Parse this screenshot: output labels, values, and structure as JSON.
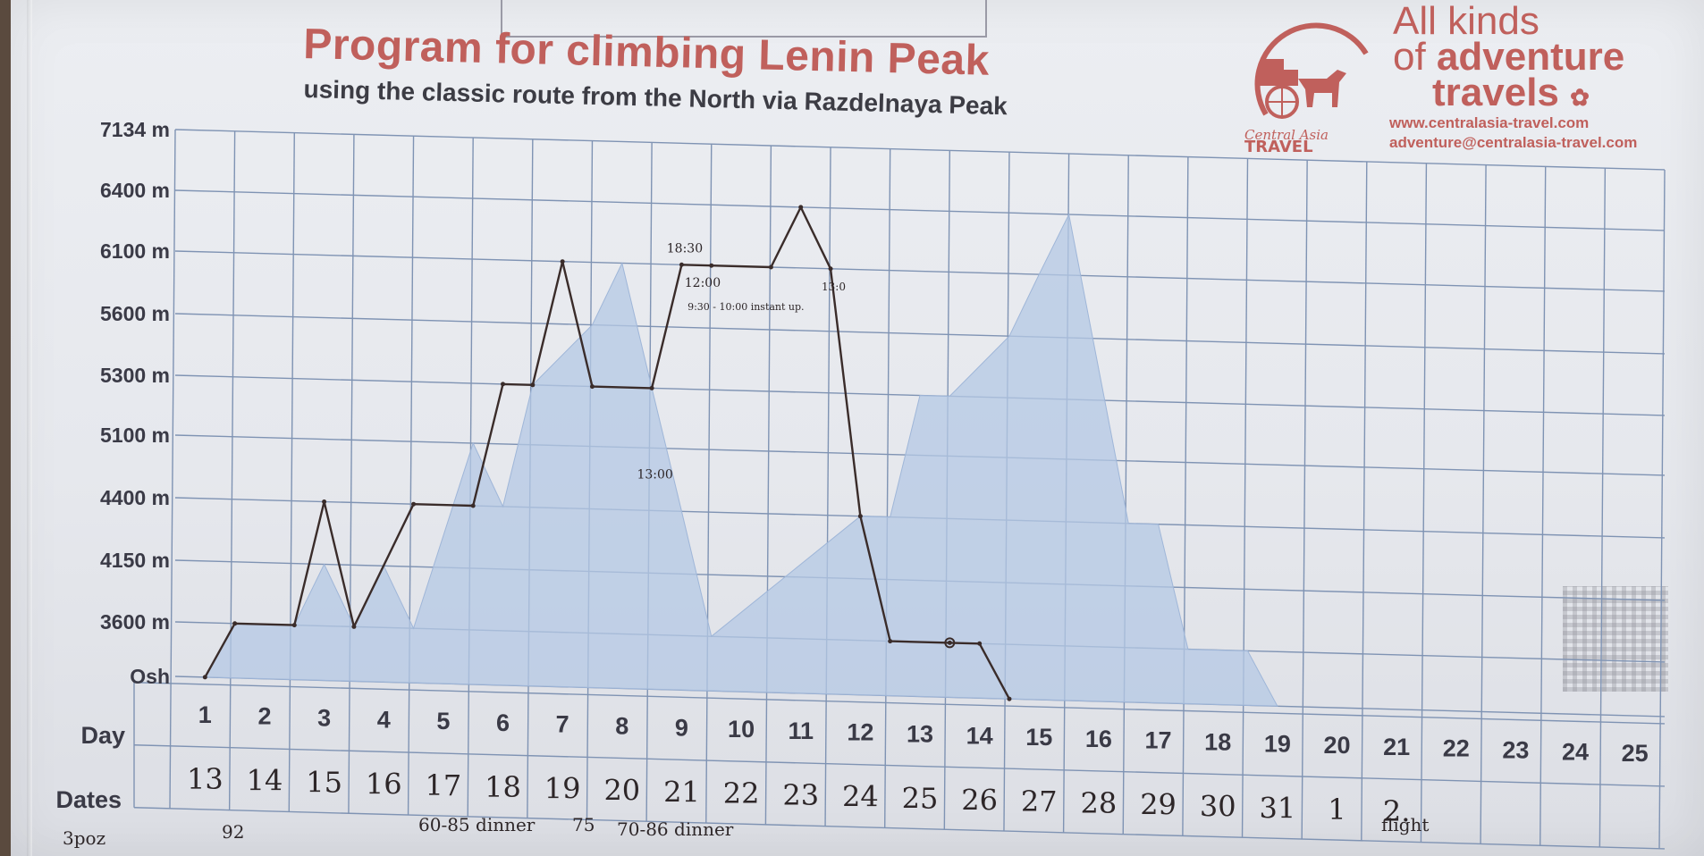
{
  "title": "Program for climbing Lenin Peak",
  "subtitle": "using the classic route from the North via Razdelnaya Peak",
  "brand": {
    "line1": "All kinds",
    "line2_prefix": "of ",
    "line2_bold": "adventure",
    "line3": "travels",
    "logo_text": "Central Asia",
    "logo_text2": "TRAVEL",
    "website": "www.centralasia-travel.com",
    "email": "adventure@centralasia-travel.com"
  },
  "chart_data": {
    "type": "line",
    "title": "Program for climbing Lenin Peak",
    "subtitle": "using the classic route from the North via Razdelnaya Peak",
    "y_tick_labels": [
      "Osh",
      "3600 m",
      "4150 m",
      "4400 m",
      "5100 m",
      "5300 m",
      "5600 m",
      "6100 m",
      "6400 m",
      "7134 m"
    ],
    "row_labels": {
      "day": "Day",
      "dates": "Dates"
    },
    "days": [
      "1",
      "2",
      "3",
      "4",
      "5",
      "6",
      "7",
      "8",
      "9",
      "10",
      "11",
      "12",
      "13",
      "14",
      "15",
      "16",
      "17",
      "18",
      "19",
      "20",
      "21",
      "22",
      "23",
      "24",
      "25"
    ],
    "dates_handwritten": [
      "13",
      "14",
      "15",
      "16",
      "17",
      "18",
      "19",
      "20",
      "21",
      "22",
      "23",
      "24",
      "25",
      "26",
      "27",
      "28",
      "29",
      "30",
      "31",
      "1",
      "2."
    ],
    "series": [
      {
        "kind": "printed-profile",
        "color": "#b4c8e4",
        "points": [
          [
            0.5,
            "Osh"
          ],
          [
            1,
            "3600 m"
          ],
          [
            2,
            "3600 m"
          ],
          [
            2.5,
            "4150 m"
          ],
          [
            3,
            "3600 m"
          ],
          [
            3.5,
            "4150 m"
          ],
          [
            4,
            "3600 m"
          ],
          [
            5,
            "5100 m"
          ],
          [
            5.5,
            "4400 m"
          ],
          [
            6,
            "5300 m"
          ],
          [
            7,
            "5600 m"
          ],
          [
            7.5,
            "6100 m"
          ],
          [
            8,
            "5300 m"
          ],
          [
            8.5,
            "4400 m"
          ],
          [
            9,
            "3600 m"
          ],
          [
            11.5,
            "4400 m"
          ],
          [
            12,
            "4400 m"
          ],
          [
            12.5,
            "5300 m"
          ],
          [
            13,
            "5300 m"
          ],
          [
            14,
            "5600 m"
          ],
          [
            14.5,
            "6100 m"
          ],
          [
            15,
            "6400 m"
          ],
          [
            16,
            "4400 m"
          ],
          [
            16.5,
            "4400 m"
          ],
          [
            17,
            "3600 m"
          ],
          [
            18,
            "3600 m"
          ],
          [
            18.5,
            "Osh"
          ]
        ]
      },
      {
        "kind": "handwritten-plan",
        "color": "#3a2c2a",
        "points": [
          [
            0.5,
            "Osh"
          ],
          [
            1,
            "3600 m"
          ],
          [
            2,
            "3600 m"
          ],
          [
            2.5,
            "4400 m"
          ],
          [
            3,
            "3600 m"
          ],
          [
            4,
            "4400 m"
          ],
          [
            5,
            "4400 m"
          ],
          [
            5.5,
            "5300 m"
          ],
          [
            6,
            "5300 m"
          ],
          [
            6.5,
            "6100 m"
          ],
          [
            7,
            "5300 m"
          ],
          [
            8,
            "5300 m"
          ],
          [
            8.5,
            "6100 m"
          ],
          [
            9,
            "6100 m"
          ],
          [
            10,
            "6100 m"
          ],
          [
            10.5,
            "6400 m"
          ],
          [
            11,
            "6100 m"
          ],
          [
            11.5,
            "4400 m"
          ],
          [
            12,
            "3600 m"
          ],
          [
            13,
            "3600 m"
          ],
          [
            13.5,
            "3600 m"
          ],
          [
            14,
            "Osh"
          ]
        ]
      }
    ],
    "annotations": {
      "day8_low": "13:00",
      "day8_high": "18:30",
      "day10_time": "12:00",
      "day10_note": "9:30 - 10:00 instant up.",
      "day11_time": "13:0",
      "bottom_notes": [
        "3poz",
        "92",
        "60-85 dinner",
        "75",
        "70-86 dinner",
        "flight"
      ]
    },
    "grid": true
  }
}
